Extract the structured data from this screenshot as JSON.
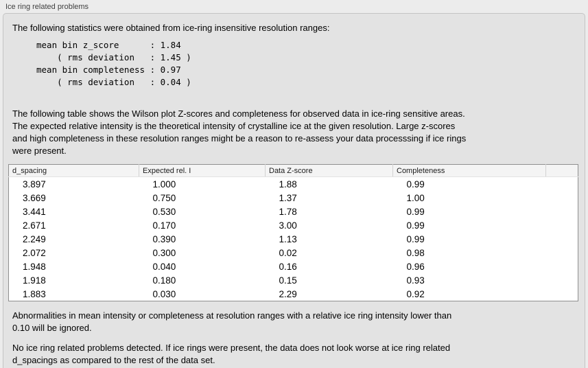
{
  "groupbox": {
    "title": "Ice ring related problems"
  },
  "texts": {
    "stats_intro": "The following statistics were obtained from ice-ring insensitive resolution ranges:",
    "stats_block": "mean bin z_score      : 1.84\n    ( rms deviation   : 1.45 )\nmean bin completeness : 0.97\n    ( rms deviation   : 0.04 )",
    "table_intro": "The following table shows the Wilson plot Z-scores and completeness for observed data in ice-ring sensitive areas.\nThe expected relative intensity is the theoretical intensity of crystalline ice at the given resolution. Large z-scores\nand high completeness in these resolution ranges might be a reason to re-assess your data processsing if ice rings\nwere present.",
    "ignore_note": "Abnormalities in mean intensity or completeness at resolution ranges with a relative ice ring intensity lower than\n0.10 will be ignored.",
    "conclusion": "No ice ring related problems detected. If ice rings were present, the data does not look worse at ice ring related\nd_spacings as compared to the rest of the data set."
  },
  "stats": {
    "mean_bin_z_score": "1.84",
    "z_score_rms_deviation": "1.45",
    "mean_bin_completeness": "0.97",
    "completeness_rms_deviation": "0.04"
  },
  "table": {
    "headers": [
      "d_spacing",
      "Expected rel. I",
      "Data Z-score",
      "Completeness",
      ""
    ],
    "rows": [
      [
        "3.897",
        "1.000",
        "1.88",
        "0.99"
      ],
      [
        "3.669",
        "0.750",
        "1.37",
        "1.00"
      ],
      [
        "3.441",
        "0.530",
        "1.78",
        "0.99"
      ],
      [
        "2.671",
        "0.170",
        "3.00",
        "0.99"
      ],
      [
        "2.249",
        "0.390",
        "1.13",
        "0.99"
      ],
      [
        "2.072",
        "0.300",
        "0.02",
        "0.98"
      ],
      [
        "1.948",
        "0.040",
        "0.16",
        "0.96"
      ],
      [
        "1.918",
        "0.180",
        "0.15",
        "0.93"
      ],
      [
        "1.883",
        "0.030",
        "2.29",
        "0.92"
      ]
    ]
  },
  "colors": {
    "page_bg": "#ececec",
    "groupbox_bg": "#e3e3e3",
    "groupbox_border": "#c4c4c4",
    "table_bg": "#ffffff",
    "table_border": "#8f8f8f",
    "header_bg": "#f4f4f4"
  }
}
